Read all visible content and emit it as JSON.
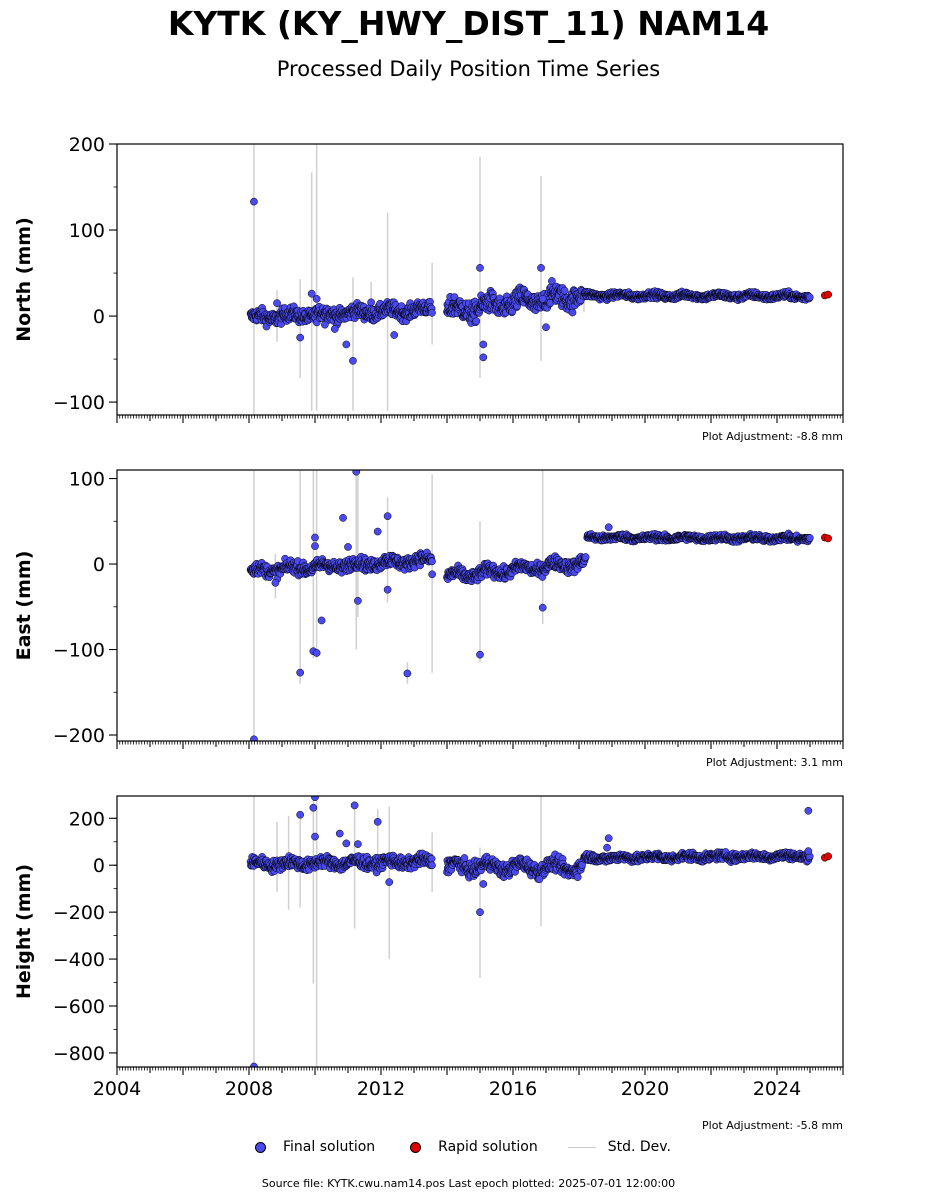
{
  "figure": {
    "title": "KYTK (KY_HWY_DIST_11) NAM14",
    "subtitle": "Processed Daily Position Time Series",
    "source": "Source file: KYTK.cwu.nam14.pos  Last epoch plotted: 2025-07-01 12:00:00"
  },
  "legend": {
    "final_label": "Final solution",
    "rapid_label": "Rapid solution",
    "stddev_label": "Std. Dev."
  },
  "colors": {
    "final": "#4a4af0",
    "rapid": "#e00000",
    "stddev": "#d0d0d0",
    "edge": "#000000"
  },
  "chart_data": [
    {
      "type": "scatter",
      "ylabel": "North (mm)",
      "adjustment": "Plot Adjustment: -8.8 mm",
      "xlim": [
        2004.0,
        2026.0
      ],
      "ylim": [
        -115,
        200
      ],
      "yticks": [
        -100,
        0,
        100,
        200
      ],
      "yminor": 50,
      "xtick_labels_shown": false,
      "segments": [
        {
          "x0": 2008.05,
          "x1": 2013.55,
          "y0": -2,
          "y1": 8,
          "noise": 4,
          "wave": 3,
          "step": 0.012
        },
        {
          "x0": 2014.0,
          "x1": 2018.1,
          "y0": 5,
          "y1": 25,
          "noise": 6,
          "wave": 6,
          "step": 0.012
        },
        {
          "x0": 2018.15,
          "x1": 2025.0,
          "y0": 24,
          "y1": 23,
          "noise": 1.8,
          "wave": 1.5,
          "step": 0.012
        }
      ],
      "outliers": [
        [
          2008.15,
          133
        ],
        [
          2008.85,
          15
        ],
        [
          2009.55,
          -25
        ],
        [
          2009.9,
          26
        ],
        [
          2010.05,
          20
        ],
        [
          2010.3,
          -10
        ],
        [
          2010.6,
          -15
        ],
        [
          2010.95,
          -33
        ],
        [
          2011.15,
          -52
        ],
        [
          2011.7,
          16
        ],
        [
          2012.4,
          -22
        ],
        [
          2015.0,
          56
        ],
        [
          2015.1,
          -33
        ],
        [
          2015.1,
          -48
        ],
        [
          2016.85,
          56
        ],
        [
          2016.9,
          20
        ],
        [
          2017.0,
          -13
        ]
      ],
      "error_bars": [
        [
          2008.15,
          -120,
          200
        ],
        [
          2008.85,
          -30,
          30
        ],
        [
          2009.55,
          -72,
          43
        ],
        [
          2009.9,
          -110,
          167
        ],
        [
          2010.05,
          -110,
          200
        ],
        [
          2011.15,
          -110,
          45
        ],
        [
          2011.7,
          0,
          40
        ],
        [
          2012.2,
          -110,
          120
        ],
        [
          2013.55,
          -33,
          62
        ],
        [
          2015.0,
          -72,
          185
        ],
        [
          2016.85,
          -52,
          163
        ],
        [
          2018.15,
          5,
          30
        ]
      ],
      "rapid": [
        [
          2025.45,
          24
        ],
        [
          2025.55,
          25
        ]
      ]
    },
    {
      "type": "scatter",
      "ylabel": "East (mm)",
      "adjustment": "Plot Adjustment: 3.1 mm",
      "xlim": [
        2004.0,
        2026.0
      ],
      "ylim": [
        -207,
        110
      ],
      "yticks": [
        -200,
        -100,
        0,
        100
      ],
      "yminor": 50,
      "xtick_labels_shown": false,
      "segments": [
        {
          "x0": 2008.05,
          "x1": 2013.55,
          "y0": -8,
          "y1": 5,
          "noise": 3.5,
          "wave": 3,
          "step": 0.012
        },
        {
          "x0": 2014.0,
          "x1": 2018.2,
          "y0": -15,
          "y1": 2,
          "noise": 3.5,
          "wave": 4,
          "step": 0.012
        },
        {
          "x0": 2018.25,
          "x1": 2025.0,
          "y0": 31,
          "y1": 30,
          "noise": 1.8,
          "wave": 1.2,
          "step": 0.012
        }
      ],
      "outliers": [
        [
          2008.15,
          -205
        ],
        [
          2008.8,
          -22
        ],
        [
          2009.55,
          -127
        ],
        [
          2009.95,
          -102
        ],
        [
          2010.05,
          -104
        ],
        [
          2010.0,
          31
        ],
        [
          2010.0,
          21
        ],
        [
          2010.2,
          -66
        ],
        [
          2010.85,
          54
        ],
        [
          2011.0,
          20
        ],
        [
          2011.25,
          108
        ],
        [
          2011.3,
          -43
        ],
        [
          2011.9,
          38
        ],
        [
          2012.2,
          56
        ],
        [
          2012.2,
          -30
        ],
        [
          2012.8,
          -128
        ],
        [
          2013.55,
          -12
        ],
        [
          2015.0,
          -106
        ],
        [
          2016.9,
          -51
        ],
        [
          2018.9,
          43
        ]
      ],
      "error_bars": [
        [
          2008.15,
          -207,
          110
        ],
        [
          2008.8,
          -40,
          12
        ],
        [
          2009.55,
          -140,
          110
        ],
        [
          2009.95,
          -110,
          110
        ],
        [
          2010.05,
          -110,
          110
        ],
        [
          2011.25,
          -100,
          110
        ],
        [
          2011.3,
          -62,
          110
        ],
        [
          2012.2,
          -45,
          78
        ],
        [
          2012.8,
          -140,
          -115
        ],
        [
          2013.55,
          -127,
          105
        ],
        [
          2015.0,
          -115,
          50
        ],
        [
          2016.9,
          -70,
          110
        ]
      ],
      "rapid": [
        [
          2025.45,
          31
        ],
        [
          2025.55,
          30
        ]
      ]
    },
    {
      "type": "scatter",
      "ylabel": "Height (mm)",
      "adjustment": "Plot Adjustment: -5.8 mm",
      "xlim": [
        2004.0,
        2026.0
      ],
      "ylim": [
        -860,
        295
      ],
      "yticks": [
        -800,
        -600,
        -400,
        -200,
        0,
        200
      ],
      "yminor": 100,
      "xticks": [
        2004,
        2008,
        2012,
        2016,
        2020,
        2024
      ],
      "xtick_labels_shown": true,
      "segments": [
        {
          "x0": 2008.05,
          "x1": 2013.55,
          "y0": 5,
          "y1": 15,
          "noise": 12,
          "wave": 10,
          "step": 0.012
        },
        {
          "x0": 2014.0,
          "x1": 2018.1,
          "y0": -5,
          "y1": -10,
          "noise": 14,
          "wave": 18,
          "step": 0.012
        },
        {
          "x0": 2018.15,
          "x1": 2025.0,
          "y0": 30,
          "y1": 40,
          "noise": 8,
          "wave": 5,
          "step": 0.012
        }
      ],
      "outliers": [
        [
          2008.15,
          -858
        ],
        [
          2009.55,
          215
        ],
        [
          2009.95,
          245
        ],
        [
          2010.0,
          290
        ],
        [
          2010.0,
          122
        ],
        [
          2010.75,
          135
        ],
        [
          2010.95,
          93
        ],
        [
          2011.2,
          255
        ],
        [
          2011.3,
          90
        ],
        [
          2011.9,
          185
        ],
        [
          2012.25,
          -72
        ],
        [
          2015.0,
          -200
        ],
        [
          2015.1,
          -80
        ],
        [
          2016.8,
          -60
        ],
        [
          2018.9,
          115
        ],
        [
          2018.85,
          75
        ],
        [
          2024.95,
          232
        ],
        [
          2024.95,
          60
        ]
      ],
      "error_bars": [
        [
          2008.15,
          -860,
          295
        ],
        [
          2008.85,
          -115,
          185
        ],
        [
          2009.2,
          -190,
          210
        ],
        [
          2009.55,
          -180,
          230
        ],
        [
          2009.95,
          -505,
          290
        ],
        [
          2010.05,
          -860,
          295
        ],
        [
          2011.2,
          -270,
          250
        ],
        [
          2011.9,
          -30,
          240
        ],
        [
          2012.25,
          -400,
          250
        ],
        [
          2013.55,
          -115,
          140
        ],
        [
          2015.0,
          -480,
          75
        ],
        [
          2016.85,
          -260,
          295
        ]
      ],
      "rapid": [
        [
          2025.45,
          32
        ],
        [
          2025.55,
          38
        ]
      ]
    }
  ]
}
